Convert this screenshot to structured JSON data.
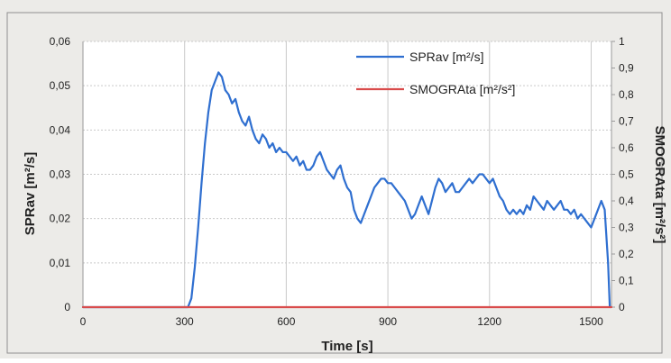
{
  "colors": {
    "page_background": "#ecebe8",
    "plot_background": "#ffffff",
    "frame": "#8f8f8f",
    "grid": "#c9c9c9",
    "axis_text": "#222222",
    "spr_line": "#2f6fd0",
    "smogra_line": "#d94b4b"
  },
  "chart_data": {
    "type": "line",
    "title": "",
    "xlabel": "Time [s]",
    "ylabel": "SPRav [m²/s]",
    "y2label": "SMOGRAta [m²/s²]",
    "xlim": [
      0,
      1560
    ],
    "ylim": [
      0,
      0.06
    ],
    "y2lim": [
      0,
      1
    ],
    "x_ticks": [
      0,
      300,
      600,
      900,
      1200,
      1500
    ],
    "x_tick_labels": [
      "0",
      "300",
      "600",
      "900",
      "1200",
      "1500"
    ],
    "y_ticks": [
      0,
      0.01,
      0.02,
      0.03,
      0.04,
      0.05,
      0.06
    ],
    "y_tick_labels": [
      "0",
      "0,01",
      "0,02",
      "0,03",
      "0,04",
      "0,05",
      "0,06"
    ],
    "y2_ticks": [
      0,
      0.1,
      0.2,
      0.3,
      0.4,
      0.5,
      0.6,
      0.7,
      0.8,
      0.9,
      1
    ],
    "y2_tick_labels": [
      "0",
      "0,1",
      "0,2",
      "0,3",
      "0,4",
      "0,5",
      "0,6",
      "0,7",
      "0,8",
      "0,9",
      "1"
    ],
    "grid": true,
    "legend_position": "top-right",
    "series": [
      {
        "name": "SPRav [m²/s]",
        "axis": "left",
        "color": "#2f6fd0",
        "x": [
          0,
          300,
          310,
          320,
          330,
          340,
          350,
          360,
          370,
          380,
          390,
          400,
          410,
          420,
          430,
          440,
          450,
          460,
          470,
          480,
          490,
          500,
          510,
          520,
          530,
          540,
          550,
          560,
          570,
          580,
          590,
          600,
          610,
          620,
          630,
          640,
          650,
          660,
          670,
          680,
          690,
          700,
          710,
          720,
          730,
          740,
          750,
          760,
          770,
          780,
          790,
          800,
          810,
          820,
          830,
          840,
          850,
          860,
          870,
          880,
          890,
          900,
          910,
          920,
          930,
          940,
          950,
          960,
          970,
          980,
          990,
          1000,
          1010,
          1020,
          1030,
          1040,
          1050,
          1060,
          1070,
          1080,
          1090,
          1100,
          1110,
          1120,
          1130,
          1140,
          1150,
          1160,
          1170,
          1180,
          1190,
          1200,
          1210,
          1220,
          1230,
          1240,
          1250,
          1260,
          1270,
          1280,
          1290,
          1300,
          1310,
          1320,
          1330,
          1340,
          1350,
          1360,
          1370,
          1380,
          1390,
          1400,
          1410,
          1420,
          1430,
          1440,
          1450,
          1460,
          1470,
          1480,
          1490,
          1500,
          1510,
          1520,
          1530,
          1540,
          1550,
          1555
        ],
        "y": [
          0,
          0,
          0,
          0.002,
          0.009,
          0.018,
          0.028,
          0.037,
          0.044,
          0.049,
          0.051,
          0.053,
          0.052,
          0.049,
          0.048,
          0.046,
          0.047,
          0.044,
          0.042,
          0.041,
          0.043,
          0.04,
          0.038,
          0.037,
          0.039,
          0.038,
          0.036,
          0.037,
          0.035,
          0.036,
          0.035,
          0.035,
          0.034,
          0.033,
          0.034,
          0.032,
          0.033,
          0.031,
          0.031,
          0.032,
          0.034,
          0.035,
          0.033,
          0.031,
          0.03,
          0.029,
          0.031,
          0.032,
          0.029,
          0.027,
          0.026,
          0.022,
          0.02,
          0.019,
          0.021,
          0.023,
          0.025,
          0.027,
          0.028,
          0.029,
          0.029,
          0.028,
          0.028,
          0.027,
          0.026,
          0.025,
          0.024,
          0.022,
          0.02,
          0.021,
          0.023,
          0.025,
          0.023,
          0.021,
          0.024,
          0.027,
          0.029,
          0.028,
          0.026,
          0.027,
          0.028,
          0.026,
          0.026,
          0.027,
          0.028,
          0.029,
          0.028,
          0.029,
          0.03,
          0.03,
          0.029,
          0.028,
          0.029,
          0.027,
          0.025,
          0.024,
          0.022,
          0.021,
          0.022,
          0.021,
          0.022,
          0.021,
          0.023,
          0.022,
          0.025,
          0.024,
          0.023,
          0.022,
          0.024,
          0.023,
          0.022,
          0.023,
          0.024,
          0.022,
          0.022,
          0.021,
          0.022,
          0.02,
          0.021,
          0.02,
          0.019,
          0.018,
          0.02,
          0.022,
          0.024,
          0.022,
          0.01,
          0
        ]
      },
      {
        "name": "SMOGRAta [m²/s²]",
        "axis": "right",
        "color": "#d94b4b",
        "x": [
          0,
          1560
        ],
        "y": [
          0,
          0
        ]
      }
    ]
  }
}
